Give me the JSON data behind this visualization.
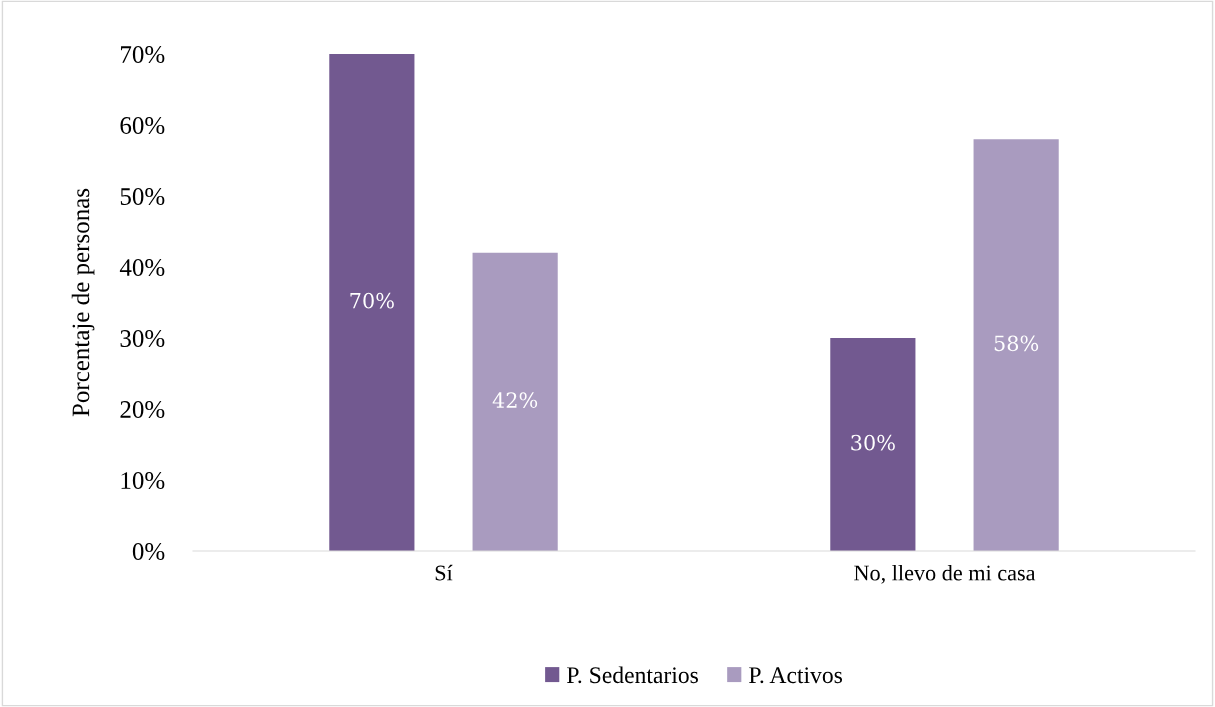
{
  "chart_data": {
    "type": "bar",
    "categories": [
      "Sí",
      "No, llevo de mi casa"
    ],
    "ylabel": "Porcentaje de personas",
    "series": [
      {
        "name": "P. Sedentarios",
        "color": "#725990",
        "values": [
          70,
          30
        ],
        "value_labels": [
          "70%",
          "30%"
        ]
      },
      {
        "name": "P. Activos",
        "color": "#a99bbf",
        "values": [
          42,
          58
        ],
        "value_labels": [
          "42%",
          "58%"
        ]
      }
    ],
    "ylim": [
      0,
      70
    ],
    "yticks": [
      {
        "value": 0,
        "label": "0%"
      },
      {
        "value": 10,
        "label": "10%"
      },
      {
        "value": 20,
        "label": "20%"
      },
      {
        "value": 30,
        "label": "30%"
      },
      {
        "value": 40,
        "label": "40%"
      },
      {
        "value": 50,
        "label": "50%"
      },
      {
        "value": 60,
        "label": "60%"
      },
      {
        "value": 70,
        "label": "70%"
      }
    ],
    "grid": false,
    "legend": "bottom"
  }
}
